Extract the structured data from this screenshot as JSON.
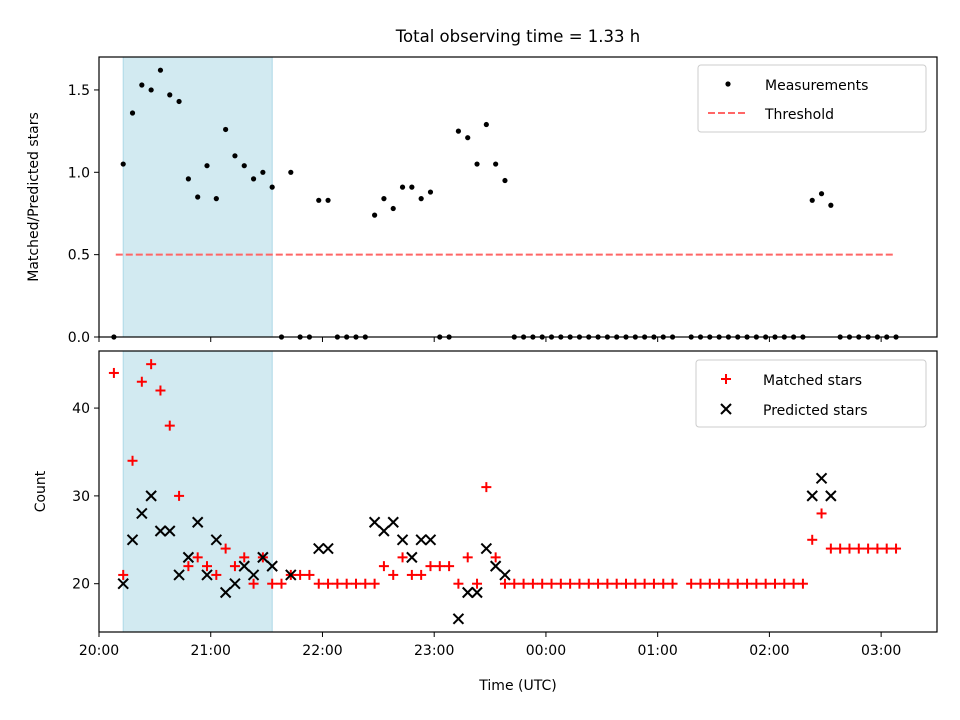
{
  "chart_data": [
    {
      "type": "scatter",
      "title": "Total observing time = 1.33 h",
      "ylabel": "Matched/Predicted stars",
      "xlabel": "",
      "xlim": [
        "20:00",
        "03:30"
      ],
      "ylim": [
        0,
        1.7
      ],
      "yticks": [
        "0.0",
        "0.5",
        "1.0",
        "1.5"
      ],
      "legend_placement": "upper-right",
      "highlight_span": {
        "from": "20:13",
        "to": "21:33",
        "color": "#add8e6"
      },
      "threshold": {
        "label": "Threshold",
        "value": 0.5,
        "from": "20:09",
        "to": "03:07",
        "color": "#ff6666"
      },
      "series": [
        {
          "name": "Measurements",
          "color": "#000000",
          "points": [
            [
              "20:08",
              0.0
            ],
            [
              "20:13",
              1.05
            ],
            [
              "20:18",
              1.36
            ],
            [
              "20:23",
              1.53
            ],
            [
              "20:28",
              1.5
            ],
            [
              "20:33",
              1.62
            ],
            [
              "20:38",
              1.47
            ],
            [
              "20:43",
              1.43
            ],
            [
              "20:48",
              0.96
            ],
            [
              "20:53",
              0.85
            ],
            [
              "20:58",
              1.04
            ],
            [
              "21:03",
              0.84
            ],
            [
              "21:08",
              1.26
            ],
            [
              "21:13",
              1.1
            ],
            [
              "21:18",
              1.04
            ],
            [
              "21:23",
              0.96
            ],
            [
              "21:28",
              1.0
            ],
            [
              "21:33",
              0.91
            ],
            [
              "21:38",
              0.0
            ],
            [
              "21:43",
              1.0
            ],
            [
              "21:48",
              0.0
            ],
            [
              "21:53",
              0.0
            ],
            [
              "21:58",
              0.83
            ],
            [
              "22:03",
              0.83
            ],
            [
              "22:08",
              0.0
            ],
            [
              "22:13",
              0.0
            ],
            [
              "22:18",
              0.0
            ],
            [
              "22:23",
              0.0
            ],
            [
              "22:28",
              0.74
            ],
            [
              "22:33",
              0.84
            ],
            [
              "22:38",
              0.78
            ],
            [
              "22:43",
              0.91
            ],
            [
              "22:48",
              0.91
            ],
            [
              "22:53",
              0.84
            ],
            [
              "22:58",
              0.88
            ],
            [
              "23:03",
              0.0
            ],
            [
              "23:08",
              0.0
            ],
            [
              "23:13",
              1.25
            ],
            [
              "23:18",
              1.21
            ],
            [
              "23:23",
              1.05
            ],
            [
              "23:28",
              1.29
            ],
            [
              "23:33",
              1.05
            ],
            [
              "23:38",
              0.95
            ],
            [
              "23:43",
              0.0
            ],
            [
              "23:48",
              0.0
            ],
            [
              "23:53",
              0.0
            ],
            [
              "23:58",
              0.0
            ],
            [
              "00:03",
              0.0
            ],
            [
              "00:08",
              0.0
            ],
            [
              "00:13",
              0.0
            ],
            [
              "00:18",
              0.0
            ],
            [
              "00:23",
              0.0
            ],
            [
              "00:28",
              0.0
            ],
            [
              "00:33",
              0.0
            ],
            [
              "00:38",
              0.0
            ],
            [
              "00:43",
              0.0
            ],
            [
              "00:48",
              0.0
            ],
            [
              "00:53",
              0.0
            ],
            [
              "00:58",
              0.0
            ],
            [
              "01:03",
              0.0
            ],
            [
              "01:08",
              0.0
            ],
            [
              "01:18",
              0.0
            ],
            [
              "01:23",
              0.0
            ],
            [
              "01:28",
              0.0
            ],
            [
              "01:33",
              0.0
            ],
            [
              "01:38",
              0.0
            ],
            [
              "01:43",
              0.0
            ],
            [
              "01:48",
              0.0
            ],
            [
              "01:53",
              0.0
            ],
            [
              "01:58",
              0.0
            ],
            [
              "02:03",
              0.0
            ],
            [
              "02:08",
              0.0
            ],
            [
              "02:13",
              0.0
            ],
            [
              "02:18",
              0.0
            ],
            [
              "02:23",
              0.83
            ],
            [
              "02:28",
              0.87
            ],
            [
              "02:33",
              0.8
            ],
            [
              "02:38",
              0.0
            ],
            [
              "02:43",
              0.0
            ],
            [
              "02:48",
              0.0
            ],
            [
              "02:53",
              0.0
            ],
            [
              "02:58",
              0.0
            ],
            [
              "03:03",
              0.0
            ],
            [
              "03:08",
              0.0
            ]
          ]
        }
      ]
    },
    {
      "type": "scatter",
      "title": "",
      "xlabel": "Time (UTC)",
      "ylabel": "Count",
      "xlim": [
        "20:00",
        "03:30"
      ],
      "ylim": [
        14.5,
        46.5
      ],
      "xticks": [
        "20:00",
        "21:00",
        "22:00",
        "23:00",
        "00:00",
        "01:00",
        "02:00",
        "03:00"
      ],
      "yticks": [
        "20",
        "30",
        "40"
      ],
      "legend_placement": "upper-right",
      "highlight_span": {
        "from": "20:13",
        "to": "21:33",
        "color": "#add8e6"
      },
      "series": [
        {
          "name": "Matched stars",
          "color": "#ff0000",
          "marker": "+",
          "points": [
            [
              "20:08",
              44
            ],
            [
              "20:13",
              21
            ],
            [
              "20:18",
              34
            ],
            [
              "20:23",
              43
            ],
            [
              "20:28",
              45
            ],
            [
              "20:33",
              42
            ],
            [
              "20:38",
              38
            ],
            [
              "20:43",
              30
            ],
            [
              "20:48",
              22
            ],
            [
              "20:53",
              23
            ],
            [
              "20:58",
              22
            ],
            [
              "21:03",
              21
            ],
            [
              "21:08",
              24
            ],
            [
              "21:13",
              22
            ],
            [
              "21:18",
              23
            ],
            [
              "21:23",
              20
            ],
            [
              "21:28",
              23
            ],
            [
              "21:33",
              20
            ],
            [
              "21:38",
              20
            ],
            [
              "21:43",
              21
            ],
            [
              "21:48",
              21
            ],
            [
              "21:53",
              21
            ],
            [
              "21:58",
              20
            ],
            [
              "22:03",
              20
            ],
            [
              "22:08",
              20
            ],
            [
              "22:13",
              20
            ],
            [
              "22:18",
              20
            ],
            [
              "22:23",
              20
            ],
            [
              "22:28",
              20
            ],
            [
              "22:33",
              22
            ],
            [
              "22:38",
              21
            ],
            [
              "22:43",
              23
            ],
            [
              "22:48",
              21
            ],
            [
              "22:53",
              21
            ],
            [
              "22:58",
              22
            ],
            [
              "23:03",
              22
            ],
            [
              "23:08",
              22
            ],
            [
              "23:13",
              20
            ],
            [
              "23:18",
              23
            ],
            [
              "23:23",
              20
            ],
            [
              "23:28",
              31
            ],
            [
              "23:33",
              23
            ],
            [
              "23:38",
              20
            ],
            [
              "23:43",
              20
            ],
            [
              "23:48",
              20
            ],
            [
              "23:53",
              20
            ],
            [
              "23:58",
              20
            ],
            [
              "00:03",
              20
            ],
            [
              "00:08",
              20
            ],
            [
              "00:13",
              20
            ],
            [
              "00:18",
              20
            ],
            [
              "00:23",
              20
            ],
            [
              "00:28",
              20
            ],
            [
              "00:33",
              20
            ],
            [
              "00:38",
              20
            ],
            [
              "00:43",
              20
            ],
            [
              "00:48",
              20
            ],
            [
              "00:53",
              20
            ],
            [
              "00:58",
              20
            ],
            [
              "01:03",
              20
            ],
            [
              "01:08",
              20
            ],
            [
              "01:18",
              20
            ],
            [
              "01:23",
              20
            ],
            [
              "01:28",
              20
            ],
            [
              "01:33",
              20
            ],
            [
              "01:38",
              20
            ],
            [
              "01:43",
              20
            ],
            [
              "01:48",
              20
            ],
            [
              "01:53",
              20
            ],
            [
              "01:58",
              20
            ],
            [
              "02:03",
              20
            ],
            [
              "02:08",
              20
            ],
            [
              "02:13",
              20
            ],
            [
              "02:18",
              20
            ],
            [
              "02:23",
              25
            ],
            [
              "02:28",
              28
            ],
            [
              "02:33",
              24
            ],
            [
              "02:38",
              24
            ],
            [
              "02:43",
              24
            ],
            [
              "02:48",
              24
            ],
            [
              "02:53",
              24
            ],
            [
              "02:58",
              24
            ],
            [
              "03:03",
              24
            ],
            [
              "03:08",
              24
            ]
          ]
        },
        {
          "name": "Predicted stars",
          "color": "#000000",
          "marker": "x",
          "points": [
            [
              "20:13",
              20
            ],
            [
              "20:18",
              25
            ],
            [
              "20:23",
              28
            ],
            [
              "20:28",
              30
            ],
            [
              "20:33",
              26
            ],
            [
              "20:38",
              26
            ],
            [
              "20:43",
              21
            ],
            [
              "20:48",
              23
            ],
            [
              "20:53",
              27
            ],
            [
              "20:58",
              21
            ],
            [
              "21:03",
              25
            ],
            [
              "21:08",
              19
            ],
            [
              "21:13",
              20
            ],
            [
              "21:18",
              22
            ],
            [
              "21:23",
              21
            ],
            [
              "21:28",
              23
            ],
            [
              "21:33",
              22
            ],
            [
              "21:43",
              21
            ],
            [
              "21:58",
              24
            ],
            [
              "22:03",
              24
            ],
            [
              "22:28",
              27
            ],
            [
              "22:33",
              26
            ],
            [
              "22:38",
              27
            ],
            [
              "22:43",
              25
            ],
            [
              "22:48",
              23
            ],
            [
              "22:53",
              25
            ],
            [
              "22:58",
              25
            ],
            [
              "23:13",
              16
            ],
            [
              "23:18",
              19
            ],
            [
              "23:23",
              19
            ],
            [
              "23:28",
              24
            ],
            [
              "23:33",
              22
            ],
            [
              "23:38",
              21
            ],
            [
              "02:23",
              30
            ],
            [
              "02:28",
              32
            ],
            [
              "02:33",
              30
            ]
          ]
        }
      ]
    }
  ]
}
